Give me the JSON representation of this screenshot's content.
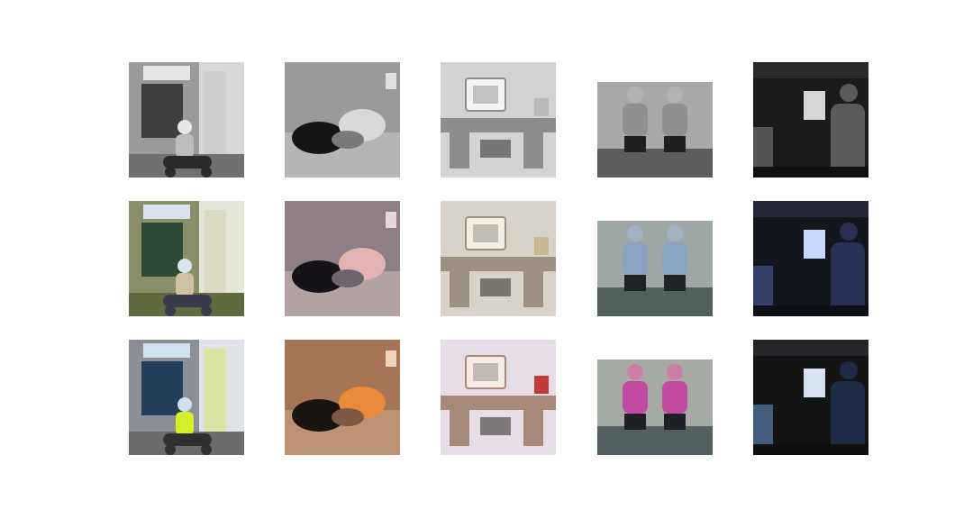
{
  "grid": {
    "rows": 3,
    "cols": 5,
    "row_modes": [
      "grayscale",
      "colorized",
      "ground-truth"
    ],
    "subjects": [
      "street-scooter",
      "cats-on-sofa",
      "computer-desk",
      "tennis-players",
      "night-scene"
    ]
  },
  "palettes": {
    "street-scooter": {
      "grayscale": {
        "bg": "#d8d8d8",
        "wall": "#9a9a9a",
        "window": "#3e3e3e",
        "sign": "#e6e6e6",
        "ground": "#707070",
        "figure": "#2a2a2a",
        "accent": "#bdbdbd"
      },
      "colorized": {
        "bg": "#e3e6d8",
        "wall": "#8a8f6a",
        "window": "#2c4a36",
        "sign": "#d9e4ee",
        "ground": "#5f6b3e",
        "figure": "#3a3a4a",
        "accent": "#d0c2a0"
      },
      "ground-truth": {
        "bg": "#dfe2e6",
        "wall": "#8c8f96",
        "window": "#233f5a",
        "sign": "#cfe0f0",
        "ground": "#6b6b6b",
        "figure": "#303030",
        "accent": "#d4ef2a"
      }
    },
    "cats-on-sofa": {
      "grayscale": {
        "bg": "#9a9a9a",
        "wall": "#7a7a7a",
        "window": "#c8c8c8",
        "sign": "#e0e0e0",
        "ground": "#b5b5b5",
        "figure": "#151515",
        "accent": "#d9d9d9"
      },
      "colorized": {
        "bg": "#8e7f86",
        "wall": "#6e6470",
        "window": "#c7b6b0",
        "sign": "#e7d7d7",
        "ground": "#b3a2a2",
        "figure": "#151318",
        "accent": "#e3b3b3"
      },
      "ground-truth": {
        "bg": "#a57556",
        "wall": "#7e5a44",
        "window": "#c69c7a",
        "sign": "#f0d3b8",
        "ground": "#bd9272",
        "figure": "#1a1410",
        "accent": "#e98a3a"
      }
    },
    "computer-desk": {
      "grayscale": {
        "bg": "#d3d3d3",
        "wall": "#8d8d8d",
        "window": "#f3f3f3",
        "sign": "#ffffff",
        "ground": "#6a6a6a",
        "figure": "#2a2a2a",
        "accent": "#b9b9b9"
      },
      "colorized": {
        "bg": "#d8d3ca",
        "wall": "#9c9181",
        "window": "#f3efe6",
        "sign": "#ffffff",
        "ground": "#6f6659",
        "figure": "#2e2a24",
        "accent": "#c9b88f"
      },
      "ground-truth": {
        "bg": "#e7dde6",
        "wall": "#a58a7a",
        "window": "#f5ece6",
        "sign": "#ffffff",
        "ground": "#7b6a61",
        "figure": "#2a2420",
        "accent": "#c23a3a"
      }
    },
    "tennis-players": {
      "grayscale": {
        "bg": "#a9a9a9",
        "wall": "#6d6d6d",
        "window": "#8f8f8f",
        "sign": "#d0d0d0",
        "ground": "#5c5c5c",
        "figure": "#202020",
        "accent": "#bdbdbd"
      },
      "colorized": {
        "bg": "#9fa7a6",
        "wall": "#5c6460",
        "window": "#8aa3c3",
        "sign": "#d8e3f0",
        "ground": "#52605c",
        "figure": "#1f2326",
        "accent": "#a8c2e6"
      },
      "ground-truth": {
        "bg": "#a6aaa5",
        "wall": "#5f6763",
        "window": "#c24aa1",
        "sign": "#f0d0e6",
        "ground": "#546060",
        "figure": "#1e2226",
        "accent": "#ff4aa8"
      }
    },
    "night-scene": {
      "grayscale": {
        "bg": "#1a1a1a",
        "wall": "#2a2a2a",
        "window": "#d7d7d7",
        "sign": "#f2f2f2",
        "ground": "#111111",
        "figure": "#5a5a5a",
        "accent": "#9b9b9b"
      },
      "colorized": {
        "bg": "#14161d",
        "wall": "#232738",
        "window": "#c9d8ff",
        "sign": "#eef3ff",
        "ground": "#0e1018",
        "figure": "#2a2f55",
        "accent": "#5e72c7"
      },
      "ground-truth": {
        "bg": "#141414",
        "wall": "#24262a",
        "window": "#d6e3f2",
        "sign": "#f3f6fb",
        "ground": "#0f1012",
        "figure": "#1d2a48",
        "accent": "#7fb4ff"
      }
    }
  }
}
